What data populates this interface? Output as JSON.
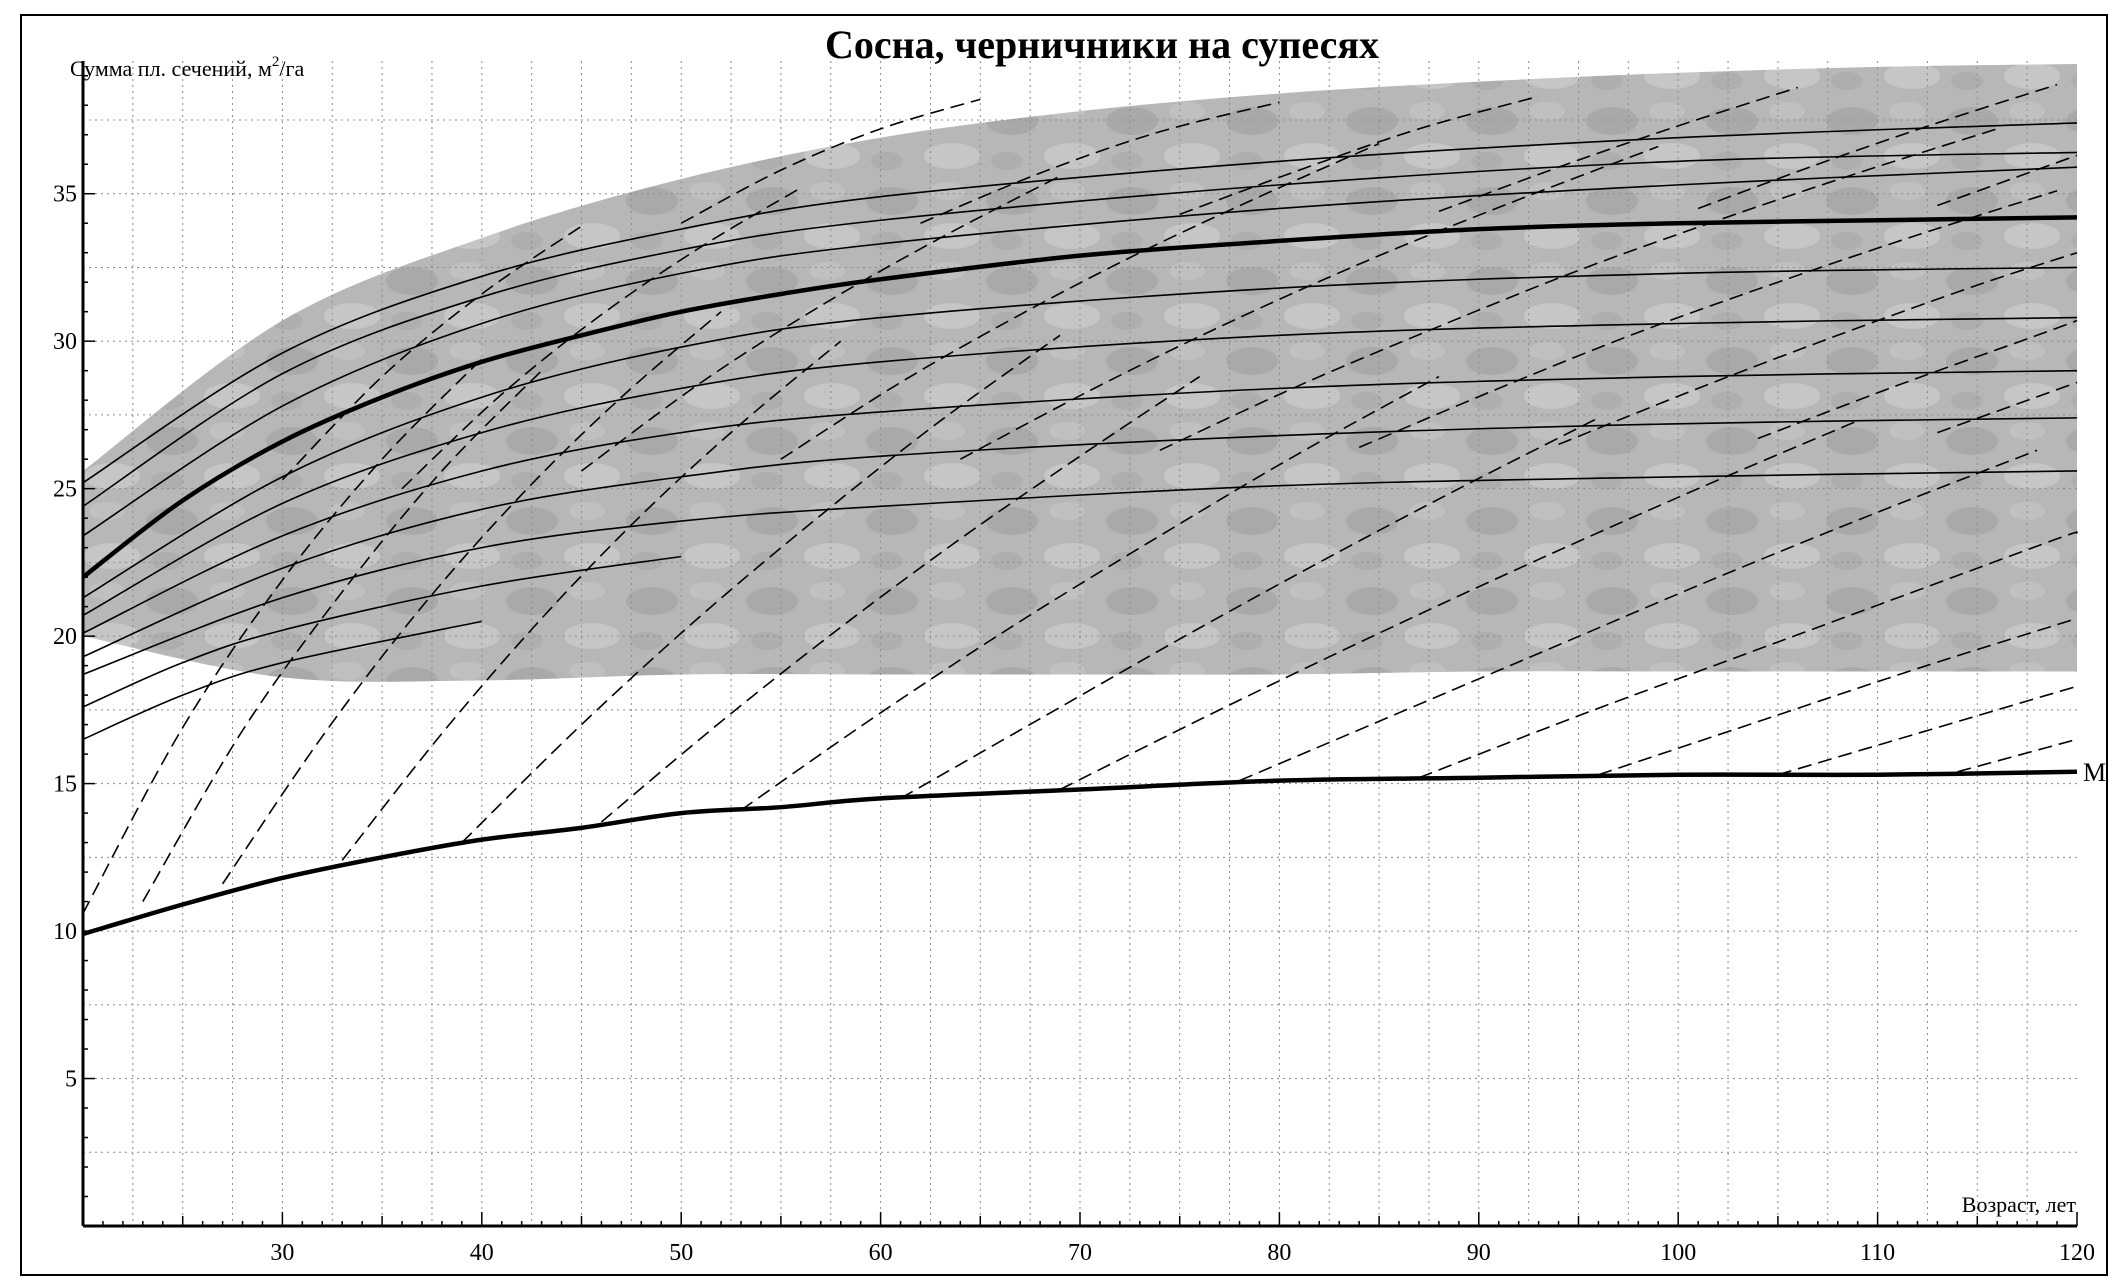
{
  "chart_data": {
    "type": "line",
    "title": "Сосна, черничники на супесях",
    "xlabel": "Возраст, лет",
    "ylabel": "Сумма пл. сечений, м²/га",
    "ylabel_main": "Сумма пл. сечений, м",
    "ylabel_sup": "2",
    "ylabel_tail": "/га",
    "xlim": [
      20,
      120
    ],
    "ylim": [
      0,
      39.5
    ],
    "x_ticks": [
      30,
      40,
      50,
      60,
      70,
      80,
      90,
      100,
      110,
      120
    ],
    "y_ticks": [
      5,
      10,
      15,
      20,
      25,
      30,
      35
    ],
    "grid": true,
    "colors": {
      "shaded_region": "#b4b4b4",
      "curves": "#000000",
      "grid": "#8a8a8a"
    },
    "shaded_region": {
      "upper": {
        "x": [
          20,
          30,
          40,
          50,
          60,
          70,
          80,
          90,
          100,
          110,
          120
        ],
        "y": [
          25.6,
          30.7,
          33.5,
          35.5,
          36.9,
          37.8,
          38.4,
          38.8,
          39.1,
          39.3,
          39.4
        ]
      },
      "lower": {
        "x": [
          20,
          30,
          40,
          50,
          60,
          70,
          80,
          90,
          100,
          110,
          120
        ],
        "y": [
          20.0,
          18.6,
          18.5,
          18.7,
          18.7,
          18.7,
          18.7,
          18.8,
          18.8,
          18.8,
          18.8
        ]
      }
    },
    "series": [
      {
        "style": "bold",
        "x": [
          20,
          25,
          30,
          35,
          40,
          45,
          50,
          55,
          60,
          70,
          80,
          90,
          100,
          110,
          120
        ],
        "y": [
          22.0,
          24.6,
          26.6,
          28.1,
          29.3,
          30.2,
          31.0,
          31.6,
          32.1,
          32.9,
          33.4,
          33.8,
          34.0,
          34.1,
          34.2
        ]
      },
      {
        "label": "M",
        "style": "bold",
        "x": [
          20,
          25,
          30,
          35,
          40,
          45,
          50,
          55,
          60,
          70,
          80,
          90,
          100,
          110,
          120
        ],
        "y": [
          9.9,
          10.9,
          11.8,
          12.5,
          13.1,
          13.5,
          14.0,
          14.2,
          14.5,
          14.8,
          15.1,
          15.2,
          15.3,
          15.3,
          15.4
        ]
      },
      {
        "style": "thin",
        "x": [
          20,
          30,
          40,
          50,
          60,
          80,
          100,
          120
        ],
        "y": [
          25.2,
          29.6,
          32.2,
          33.8,
          34.9,
          36.1,
          36.9,
          37.4
        ]
      },
      {
        "style": "thin",
        "x": [
          20,
          30,
          40,
          50,
          60,
          80,
          100,
          120
        ],
        "y": [
          24.4,
          28.9,
          31.5,
          33.1,
          34.1,
          35.3,
          36.1,
          36.4
        ]
      },
      {
        "style": "thin",
        "x": [
          20,
          30,
          40,
          50,
          60,
          80,
          100,
          120
        ],
        "y": [
          23.4,
          27.8,
          30.6,
          32.3,
          33.3,
          34.5,
          35.3,
          35.9
        ]
      },
      {
        "style": "thin",
        "x": [
          20,
          30,
          40,
          50,
          60,
          80,
          100,
          120
        ],
        "y": [
          21.3,
          25.4,
          28.1,
          29.8,
          30.8,
          31.8,
          32.3,
          32.5
        ]
      },
      {
        "style": "thin",
        "x": [
          20,
          30,
          40,
          50,
          60,
          80,
          100,
          120
        ],
        "y": [
          20.7,
          24.5,
          26.9,
          28.4,
          29.3,
          30.2,
          30.6,
          30.8
        ]
      },
      {
        "style": "thin",
        "x": [
          20,
          30,
          40,
          50,
          60,
          80,
          100,
          120
        ],
        "y": [
          20.1,
          23.4,
          25.6,
          26.9,
          27.6,
          28.4,
          28.8,
          29.0
        ]
      },
      {
        "style": "thin",
        "x": [
          20,
          30,
          40,
          50,
          60,
          80,
          100,
          120
        ],
        "y": [
          19.3,
          22.3,
          24.3,
          25.4,
          26.1,
          26.8,
          27.2,
          27.4
        ]
      },
      {
        "style": "thin",
        "x": [
          20,
          30,
          40,
          50,
          60,
          80,
          100,
          120
        ],
        "y": [
          18.7,
          21.3,
          23.0,
          23.9,
          24.4,
          25.1,
          25.4,
          25.6
        ]
      },
      {
        "style": "thin",
        "x": [
          20,
          25,
          30,
          40,
          50
        ],
        "y": [
          17.6,
          19.1,
          20.2,
          21.7,
          22.7
        ]
      },
      {
        "style": "thin",
        "x": [
          20,
          25,
          30,
          40
        ],
        "y": [
          16.5,
          18.0,
          19.1,
          20.5
        ]
      }
    ],
    "dashed_lines": [
      {
        "x": [
          20,
          25,
          30,
          35,
          40
        ],
        "y": [
          10.6,
          16.9,
          21.9,
          26.0,
          29.4
        ]
      },
      {
        "x": [
          23,
          28,
          33,
          38,
          43
        ],
        "y": [
          11.0,
          16.8,
          21.5,
          25.6,
          29.0
        ]
      },
      {
        "x": [
          27,
          32,
          37,
          42,
          47,
          52
        ],
        "y": [
          11.6,
          16.6,
          21.0,
          24.8,
          28.1,
          31.0
        ]
      },
      {
        "x": [
          33,
          38,
          43,
          48,
          53,
          58
        ],
        "y": [
          12.4,
          16.7,
          20.6,
          24.1,
          27.2,
          30.0
        ]
      },
      {
        "x": [
          39,
          45,
          51,
          57,
          63,
          69
        ],
        "y": [
          13.0,
          17.0,
          20.7,
          24.1,
          27.3,
          30.2
        ]
      },
      {
        "x": [
          46,
          52,
          58,
          64,
          70,
          76
        ],
        "y": [
          13.7,
          17.1,
          20.3,
          23.3,
          26.1,
          28.8
        ]
      },
      {
        "x": [
          53,
          60,
          67,
          74,
          81,
          88
        ],
        "y": [
          14.1,
          17.4,
          20.5,
          23.4,
          26.2,
          28.8
        ]
      },
      {
        "x": [
          61,
          68,
          75,
          82,
          89,
          96
        ],
        "y": [
          14.5,
          17.2,
          19.9,
          22.5,
          25.0,
          27.4
        ]
      },
      {
        "x": [
          69,
          77,
          85,
          93,
          101,
          109
        ],
        "y": [
          14.8,
          17.5,
          20.1,
          22.6,
          25.0,
          27.3
        ]
      },
      {
        "x": [
          78,
          86,
          94,
          102,
          110,
          118
        ],
        "y": [
          15.1,
          17.4,
          19.7,
          22.0,
          24.2,
          26.3
        ]
      },
      {
        "x": [
          87,
          95,
          103,
          111,
          119,
          120
        ],
        "y": [
          15.2,
          17.3,
          19.3,
          21.3,
          23.3,
          23.5
        ]
      },
      {
        "x": [
          96,
          104,
          112,
          120
        ],
        "y": [
          15.3,
          17.1,
          18.9,
          20.6
        ]
      },
      {
        "x": [
          105,
          112,
          120
        ],
        "y": [
          15.3,
          16.7,
          18.3
        ]
      },
      {
        "x": [
          114,
          120
        ],
        "y": [
          15.4,
          16.5
        ]
      },
      {
        "x": [
          30,
          35,
          40,
          45
        ],
        "y": [
          25.3,
          28.8,
          31.6,
          33.9
        ]
      },
      {
        "x": [
          36,
          41,
          46,
          51,
          56
        ],
        "y": [
          25.0,
          28.2,
          30.9,
          33.2,
          35.2
        ]
      },
      {
        "x": [
          45,
          51,
          57,
          63,
          69
        ],
        "y": [
          25.6,
          28.6,
          31.2,
          33.5,
          35.6
        ]
      },
      {
        "x": [
          55,
          61,
          67,
          73,
          79,
          85
        ],
        "y": [
          26.0,
          28.6,
          30.9,
          33.0,
          34.9,
          36.7
        ]
      },
      {
        "x": [
          64,
          71,
          78,
          85,
          92,
          99
        ],
        "y": [
          26.0,
          28.5,
          30.8,
          32.9,
          34.8,
          36.6
        ]
      },
      {
        "x": [
          74,
          81,
          88,
          95,
          102,
          109,
          116
        ],
        "y": [
          26.3,
          28.5,
          30.5,
          32.4,
          34.1,
          35.7,
          37.2
        ]
      },
      {
        "x": [
          84,
          91,
          98,
          105,
          112,
          119
        ],
        "y": [
          26.4,
          28.4,
          30.3,
          32.0,
          33.6,
          35.1
        ]
      },
      {
        "x": [
          94,
          101,
          108,
          115,
          120
        ],
        "y": [
          26.5,
          28.4,
          30.2,
          31.9,
          33.0
        ]
      },
      {
        "x": [
          104,
          111,
          118,
          120
        ],
        "y": [
          26.7,
          28.5,
          30.2,
          30.7
        ]
      },
      {
        "x": [
          113,
          120
        ],
        "y": [
          26.9,
          28.6
        ]
      },
      {
        "x": [
          50,
          55,
          60,
          65
        ],
        "y": [
          34.0,
          35.8,
          37.2,
          38.2
        ]
      },
      {
        "x": [
          62,
          68,
          74,
          80
        ],
        "y": [
          34.0,
          35.7,
          37.1,
          38.1
        ]
      },
      {
        "x": [
          75,
          81,
          87,
          93
        ],
        "y": [
          34.3,
          35.8,
          37.2,
          38.3
        ]
      },
      {
        "x": [
          88,
          94,
          100,
          106
        ],
        "y": [
          34.4,
          35.9,
          37.3,
          38.6
        ]
      },
      {
        "x": [
          101,
          107,
          113,
          119
        ],
        "y": [
          34.5,
          36.0,
          37.4,
          38.7
        ]
      },
      {
        "x": [
          113,
          120
        ],
        "y": [
          34.6,
          36.3
        ]
      }
    ]
  }
}
